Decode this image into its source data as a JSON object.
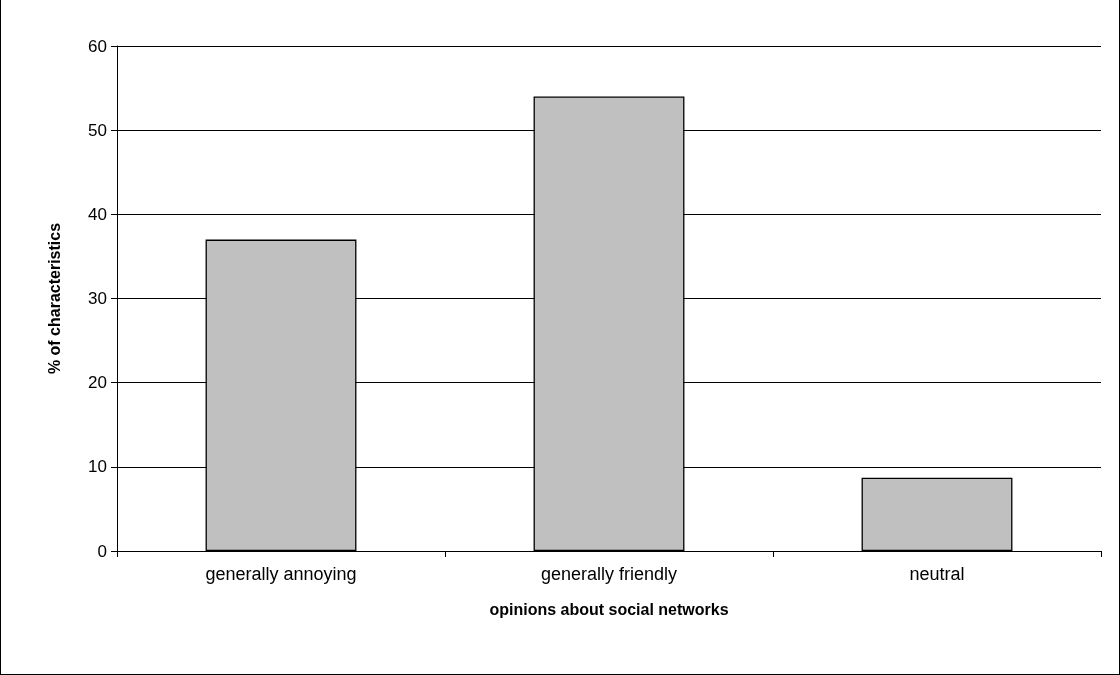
{
  "chart_data": {
    "type": "bar",
    "xlabel": "opinions about social networks",
    "ylabel": "% of characteristics",
    "categories": [
      "generally annoying",
      "generally friendly",
      "neutral"
    ],
    "values": [
      37,
      54,
      8.7
    ],
    "color": "#c0c0c0",
    "ylim": [
      0,
      60
    ],
    "yticks": [
      0,
      10,
      20,
      30,
      40,
      50,
      60
    ],
    "grid": "y"
  }
}
